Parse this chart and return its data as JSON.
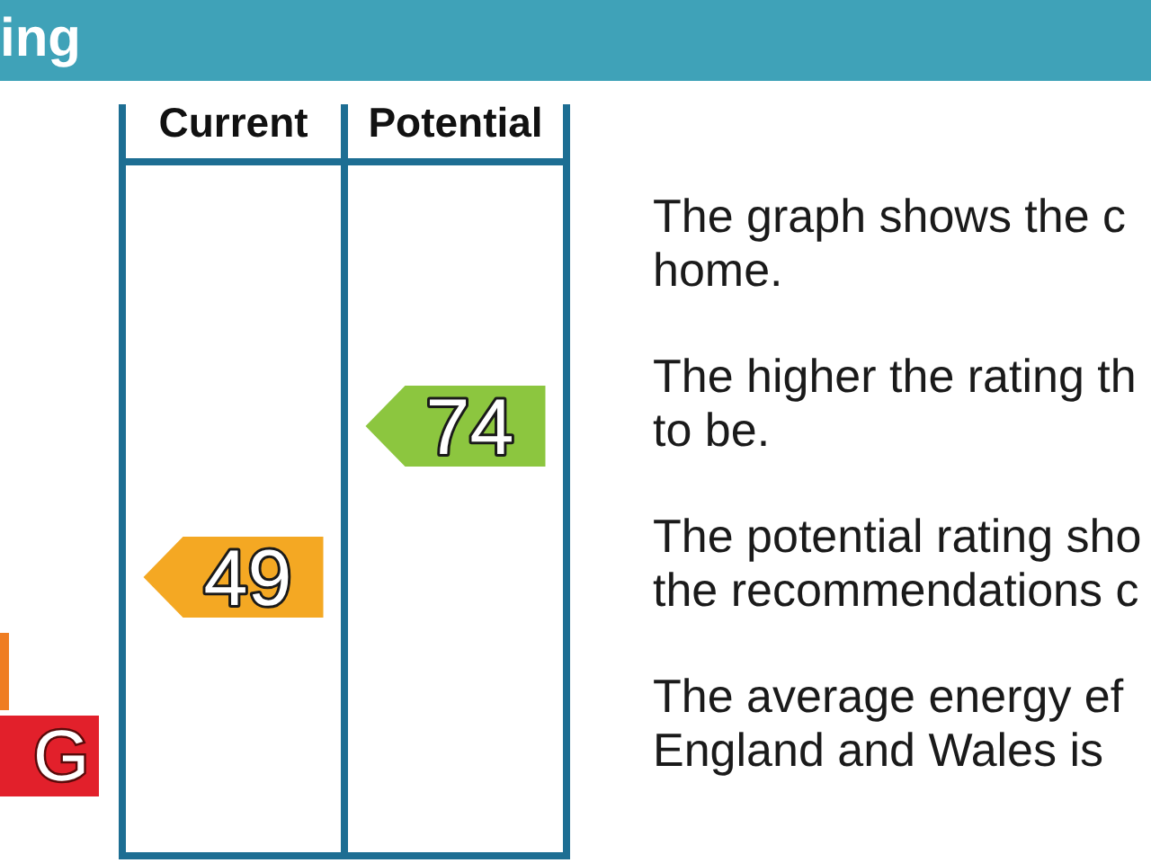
{
  "chart_data": {
    "type": "other",
    "title": "ing",
    "categories": [
      "Current",
      "Potential"
    ],
    "values": [
      49,
      74
    ],
    "colors": [
      "#f4a823",
      "#8cc63f"
    ],
    "data_labels": true,
    "annotations": [
      "G",
      "The graph shows the c\nhome.",
      "The higher the rating th\nto be.",
      "The potential rating sho\nthe recommendations c",
      "The average energy ef\nEngland and Wales is"
    ]
  }
}
